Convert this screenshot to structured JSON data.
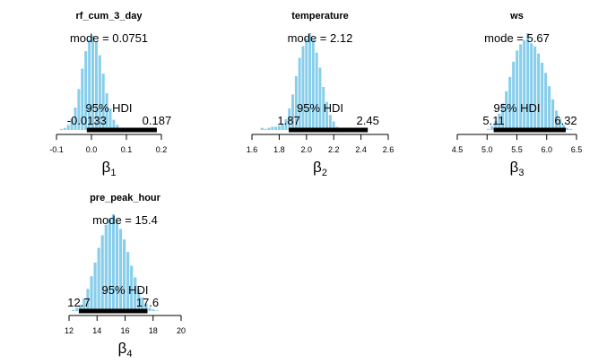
{
  "chart_data": [
    {
      "type": "histogram",
      "title": "rf_cum_3_day",
      "xlabel_symbol": "β",
      "xlabel_sub": "1",
      "xlim": [
        -0.1,
        0.2
      ],
      "xticks": [
        "-0.1",
        "0.0",
        "0.1",
        "0.2"
      ],
      "mode_label": "mode = 0.0751",
      "hdi_label": "95% HDI",
      "hdi_low_label": "-0.0133",
      "hdi_high_label": "0.187",
      "hdi": [
        -0.0133,
        0.187
      ],
      "bar_color": "#87ceeb",
      "bins": {
        "start": -0.1,
        "width": 0.01,
        "heights": [
          0,
          1,
          2,
          5,
          11,
          22,
          40,
          60,
          77,
          88,
          92,
          86,
          73,
          55,
          36,
          21,
          10,
          5,
          2,
          1,
          0.5,
          0,
          0,
          0,
          0,
          0,
          0,
          0,
          0,
          0
        ]
      }
    },
    {
      "type": "histogram",
      "title": "temperature",
      "xlabel_symbol": "β",
      "xlabel_sub": "2",
      "xlim": [
        1.6,
        2.6
      ],
      "xticks": [
        "1.6",
        "1.8",
        "2.0",
        "2.2",
        "2.4",
        "2.6"
      ],
      "mode_label": "mode = 2.12",
      "hdi_label": "95% HDI",
      "hdi_low_label": "1.87",
      "hdi_high_label": "2.45",
      "hdi": [
        1.87,
        2.45
      ],
      "bar_color": "#87ceeb",
      "bins": {
        "start": 1.64,
        "width": 0.025,
        "heights": [
          0,
          2,
          1,
          2,
          3,
          3,
          4,
          6,
          10,
          20,
          33,
          50,
          67,
          78,
          85,
          90,
          84,
          72,
          58,
          40,
          26,
          14,
          8,
          3,
          1,
          0.5,
          0.3
        ]
      }
    },
    {
      "type": "histogram",
      "title": "ws",
      "xlabel_symbol": "β",
      "xlabel_sub": "3",
      "xlim": [
        4.5,
        6.5
      ],
      "xticks": [
        "4.5",
        "5.0",
        "5.5",
        "6.0",
        "6.5"
      ],
      "mode_label": "mode = 5.67",
      "hdi_label": "95% HDI",
      "hdi_low_label": "5.11",
      "hdi_high_label": "6.32",
      "hdi": [
        5.11,
        6.32
      ],
      "bar_color": "#87ceeb",
      "bins": {
        "start": 5.0,
        "width": 0.06,
        "heights": [
          1,
          4,
          9,
          16,
          26,
          38,
          52,
          67,
          78,
          84,
          88,
          95,
          85,
          82,
          75,
          66,
          56,
          43,
          30,
          19,
          11,
          5,
          2,
          1
        ]
      }
    },
    {
      "type": "histogram",
      "title": "pre_peak_hour",
      "xlabel_symbol": "β",
      "xlabel_sub": "4",
      "xlim": [
        12,
        20
      ],
      "xticks": [
        "12",
        "14",
        "16",
        "18",
        "20"
      ],
      "mode_label": "mode = 15.4",
      "hdi_label": "95% HDI",
      "hdi_low_label": "12.7",
      "hdi_high_label": "17.6",
      "hdi": [
        12.7,
        17.6
      ],
      "bar_color": "#87ceeb",
      "bins": {
        "start": 12.2,
        "width": 0.26,
        "heights": [
          1,
          3,
          6,
          12,
          21,
          33,
          46,
          60,
          72,
          82,
          88,
          92,
          85,
          78,
          68,
          56,
          43,
          32,
          21,
          13,
          7,
          3,
          1.5,
          0.5
        ]
      }
    }
  ]
}
